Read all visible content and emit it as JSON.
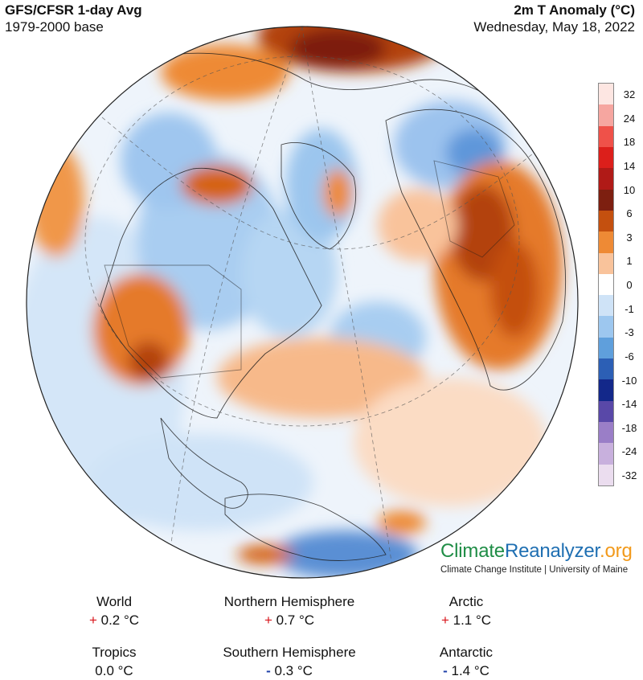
{
  "header": {
    "title_left": "GFS/CFSR 1-day Avg",
    "subtitle_left": "1979-2000 base",
    "title_right": "2m T Anomaly (°C)",
    "subtitle_right": "Wednesday, May 18, 2022"
  },
  "legend": {
    "labels": [
      "32",
      "24",
      "18",
      "14",
      "10",
      "6",
      "3",
      "1",
      "0",
      "-1",
      "-3",
      "-6",
      "-10",
      "-14",
      "-18",
      "-24",
      "-32"
    ],
    "colors": [
      "#fde6e2",
      "#f6a6a0",
      "#ef5149",
      "#dc1f1b",
      "#b01a17",
      "#7d1f10",
      "#c4500f",
      "#ee8a35",
      "#f9c39b",
      "#ffffff",
      "#cfe3f7",
      "#9dc7ef",
      "#5f9fdc",
      "#2c5fb5",
      "#13288a",
      "#5948a8",
      "#9a7ec7",
      "#c8b0dd",
      "#ebddef"
    ]
  },
  "branding": {
    "name_part1": "Climate",
    "name_part2": "Reanalyzer",
    "name_part3": ".org",
    "subtitle": "Climate Change Institute | University of Maine"
  },
  "stats": [
    {
      "label": "World",
      "sign": "+",
      "value": "0.2 °C"
    },
    {
      "label": "Northern Hemisphere",
      "sign": "+",
      "value": "0.7 °C"
    },
    {
      "label": "Arctic",
      "sign": "+",
      "value": "1.1 °C"
    },
    {
      "label": "Tropics",
      "sign": "",
      "value": "0.0 °C"
    },
    {
      "label": "Southern Hemisphere",
      "sign": "-",
      "value": "0.3 °C"
    },
    {
      "label": "Antarctic",
      "sign": "-",
      "value": "1.4 °C"
    }
  ]
}
